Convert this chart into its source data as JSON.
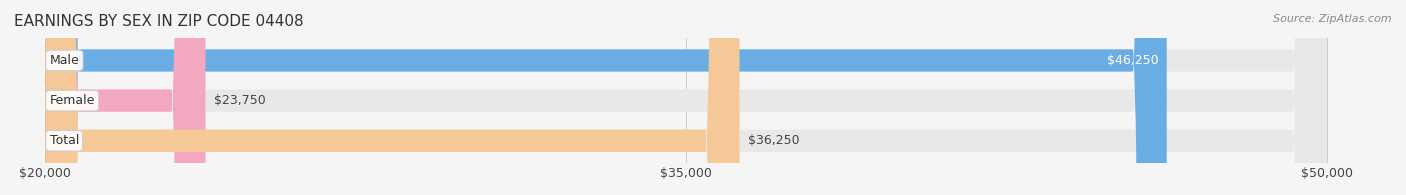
{
  "title": "EARNINGS BY SEX IN ZIP CODE 04408",
  "source": "Source: ZipAtlas.com",
  "categories": [
    "Male",
    "Female",
    "Total"
  ],
  "values": [
    46250,
    23750,
    36250
  ],
  "labels": [
    "$46,250",
    "$23,750",
    "$36,250"
  ],
  "bar_colors": [
    "#6aade4",
    "#f4a8c0",
    "#f5c897"
  ],
  "bar_edge_colors": [
    "#6aade4",
    "#f4a8c0",
    "#f5c897"
  ],
  "label_colors": [
    "#ffffff",
    "#555555",
    "#555555"
  ],
  "xmin": 20000,
  "xmax": 50000,
  "xticks": [
    20000,
    35000,
    50000
  ],
  "xtick_labels": [
    "$20,000",
    "$35,000",
    "$50,000"
  ],
  "background_color": "#f5f5f5",
  "bar_bg_color": "#e8e8e8",
  "title_fontsize": 11,
  "tick_fontsize": 9,
  "bar_label_fontsize": 9,
  "category_fontsize": 9
}
